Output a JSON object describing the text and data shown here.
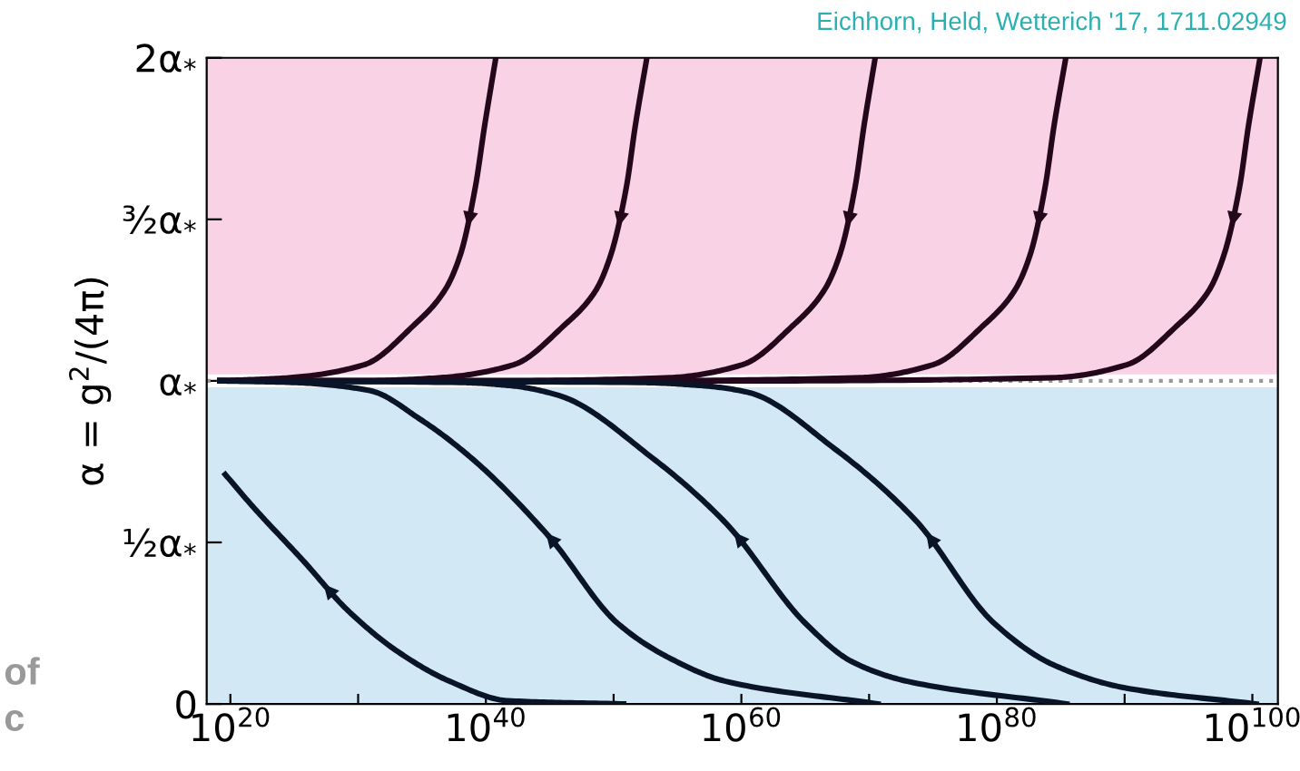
{
  "chart_data": {
    "type": "line",
    "ylabel": "α = g$^{2}$/(4π)",
    "log": "x",
    "annotations": [
      "Eichhorn, Held, Wetterich '17, 1711.02949",
      "of",
      "c"
    ],
    "xlim": [
      1.4e+18,
      1e+102
    ],
    "xticks": [
      {
        "value": 1e+20,
        "label": "10$^{20}$"
      },
      {
        "value": 1e+30,
        "label": null
      },
      {
        "value": 1e+40,
        "label": "10$^{40}$"
      },
      {
        "value": 1e+50,
        "label": null
      },
      {
        "value": 1e+60,
        "label": "10$^{60}$"
      },
      {
        "value": 1e+70,
        "label": null
      },
      {
        "value": 1e+80,
        "label": "10$^{80}$"
      },
      {
        "value": 1e+90,
        "label": null
      },
      {
        "value": 1e+100,
        "label": "10$^{100}$"
      }
    ],
    "ylim": [
      0,
      2
    ],
    "yticks": [
      0,
      {
        "value": 0.5,
        "label": "¹⁄₂α$_{*}$"
      },
      {
        "value": 1,
        "label": "α$_{*}$"
      },
      {
        "value": 1.5,
        "label": "³⁄₂α$_{*}$"
      },
      {
        "value": 2,
        "label": "2α$_{*}$"
      }
    ],
    "bands": [
      {
        "axis": "y",
        "from": 1.02,
        "to": 2,
        "color": "#f9d2e6"
      },
      {
        "axis": "y",
        "from": 0,
        "to": 0.98,
        "color": "#d2e8f4"
      }
    ],
    "ref_lines": [
      {
        "axis": "y",
        "value": 1,
        "color": "#999999",
        "line_style": "dotted"
      }
    ],
    "grid": false,
    "marker": "none",
    "line_style": "solid",
    "series": [
      {
        "color": "#22081a",
        "x": [
          1.5e+19,
          5e+24,
          3e+30,
          2e+34,
          6e+36,
          1e+38,
          1.5e+39,
          8e+39,
          6e+40
        ],
        "values": [
          1.0,
          1.01,
          1.05,
          1.17,
          1.28,
          1.39,
          1.6,
          1.79,
          2.0
        ]
      },
      {
        "color": "#22081a",
        "x": [
          1.5e+19,
          1e+30,
          3e+36,
          1.5e+42,
          1.2e+46,
          4e+48,
          6e+49,
          1e+51,
          5e+51,
          4e+52
        ],
        "values": [
          1.0,
          1.0,
          1.01,
          1.05,
          1.17,
          1.28,
          1.39,
          1.6,
          1.79,
          2.0
        ]
      },
      {
        "color": "#22081a",
        "x": [
          1.5e+19,
          1e+40,
          2.5e+54,
          1.2e+60,
          1e+64,
          3e+66,
          5e+67,
          8e+68,
          4e+69,
          3e+70
        ],
        "values": [
          1.0,
          1.0,
          1.01,
          1.05,
          1.17,
          1.28,
          1.39,
          1.6,
          1.79,
          2.0
        ]
      },
      {
        "color": "#22081a",
        "x": [
          1.5e+19,
          1e+50,
          2e+69,
          1e+75,
          8e+78,
          2.5e+81,
          4e+82,
          6e+83,
          3e+84,
          2.5e+85
        ],
        "values": [
          1.0,
          1.0,
          1.01,
          1.05,
          1.17,
          1.28,
          1.39,
          1.6,
          1.79,
          2.0
        ]
      },
      {
        "color": "#22081a",
        "x": [
          1.5e+19,
          1e+60,
          3e+84,
          1.5e+90,
          1.2e+94,
          4e+96,
          6e+97,
          1e+99,
          5e+99,
          4e+100
        ],
        "values": [
          1.0,
          1.0,
          1.01,
          1.05,
          1.17,
          1.28,
          1.39,
          1.6,
          1.79,
          2.0
        ]
      },
      {
        "color": "#0a1428",
        "x": [
          4e+19,
          6e+21,
          6e+25,
          1.5e+29,
          1.5e+33,
          1.5e+37,
          5e+41,
          6e+50
        ],
        "values": [
          0.71,
          0.61,
          0.44,
          0.29,
          0.16,
          0.07,
          0.01,
          0.0
        ]
      },
      {
        "color": "#0a1428",
        "x": [
          1.5e+19,
          1e+25,
          8e+30,
          8e+34,
          8e+38,
          8e+44,
          2e+50,
          3e+54,
          6e+58,
          5e+70
        ],
        "values": [
          1.0,
          0.995,
          0.97,
          0.88,
          0.76,
          0.52,
          0.25,
          0.14,
          0.07,
          0.0
        ]
      },
      {
        "color": "#0a1428",
        "x": [
          1.5e+19,
          1e+38,
          1e+42,
          5e+45,
          1.2e+53,
          6e+58,
          1e+65,
          5e+68,
          1e+73,
          3e+85
        ],
        "values": [
          1.0,
          0.995,
          0.985,
          0.955,
          0.76,
          0.56,
          0.25,
          0.13,
          0.07,
          0.0
        ]
      },
      {
        "color": "#0a1428",
        "x": [
          1.5e+19,
          1e+52,
          1e+57,
          3e+60,
          2e+67,
          4e+73,
          6e+79,
          3e+84,
          1e+90,
          2e+100
        ],
        "values": [
          1.0,
          0.995,
          0.985,
          0.965,
          0.79,
          0.57,
          0.25,
          0.12,
          0.05,
          0.0
        ]
      }
    ]
  }
}
